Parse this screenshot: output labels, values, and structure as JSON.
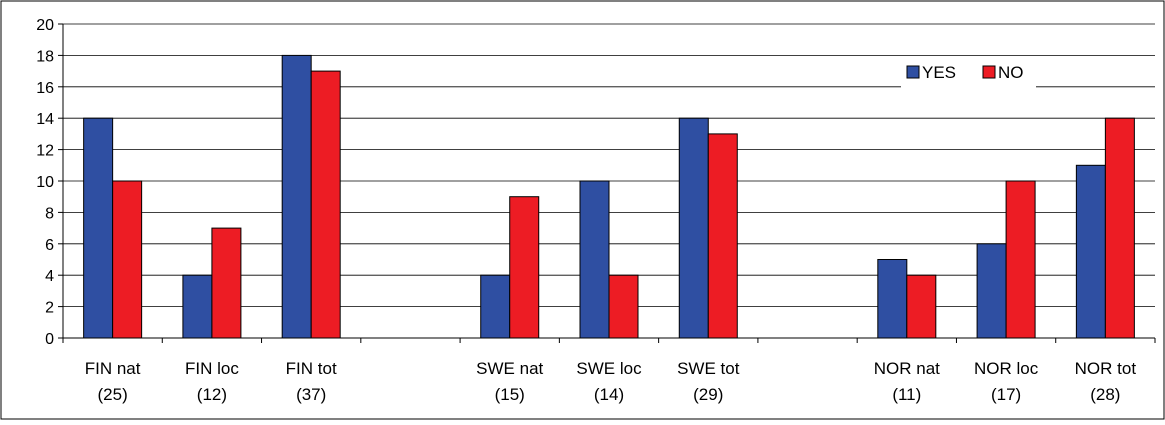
{
  "chart_data": {
    "type": "bar",
    "categories": [
      [
        "FIN nat",
        "(25)"
      ],
      [
        "FIN loc",
        "(12)"
      ],
      [
        "FIN tot",
        "(37)"
      ],
      [
        "",
        ""
      ],
      [
        "SWE nat",
        "(15)"
      ],
      [
        "SWE loc",
        "(14)"
      ],
      [
        "SWE tot",
        "(29)"
      ],
      [
        "",
        ""
      ],
      [
        "NOR nat",
        "(11)"
      ],
      [
        "NOR loc",
        "(17)"
      ],
      [
        "NOR tot",
        "(28)"
      ]
    ],
    "series": [
      {
        "name": "YES",
        "color": "#2f4fa2",
        "values": [
          14,
          4,
          18,
          null,
          4,
          10,
          14,
          null,
          5,
          6,
          11
        ]
      },
      {
        "name": "NO",
        "color": "#ed1c24",
        "values": [
          10,
          7,
          17,
          null,
          9,
          4,
          13,
          null,
          4,
          10,
          14
        ]
      }
    ],
    "ylim": [
      0,
      20
    ],
    "yticks": [
      0,
      2,
      4,
      6,
      8,
      10,
      12,
      14,
      16,
      18,
      20
    ],
    "grid": true,
    "legend_position": "top-right",
    "title": "",
    "xlabel": "",
    "ylabel": ""
  }
}
